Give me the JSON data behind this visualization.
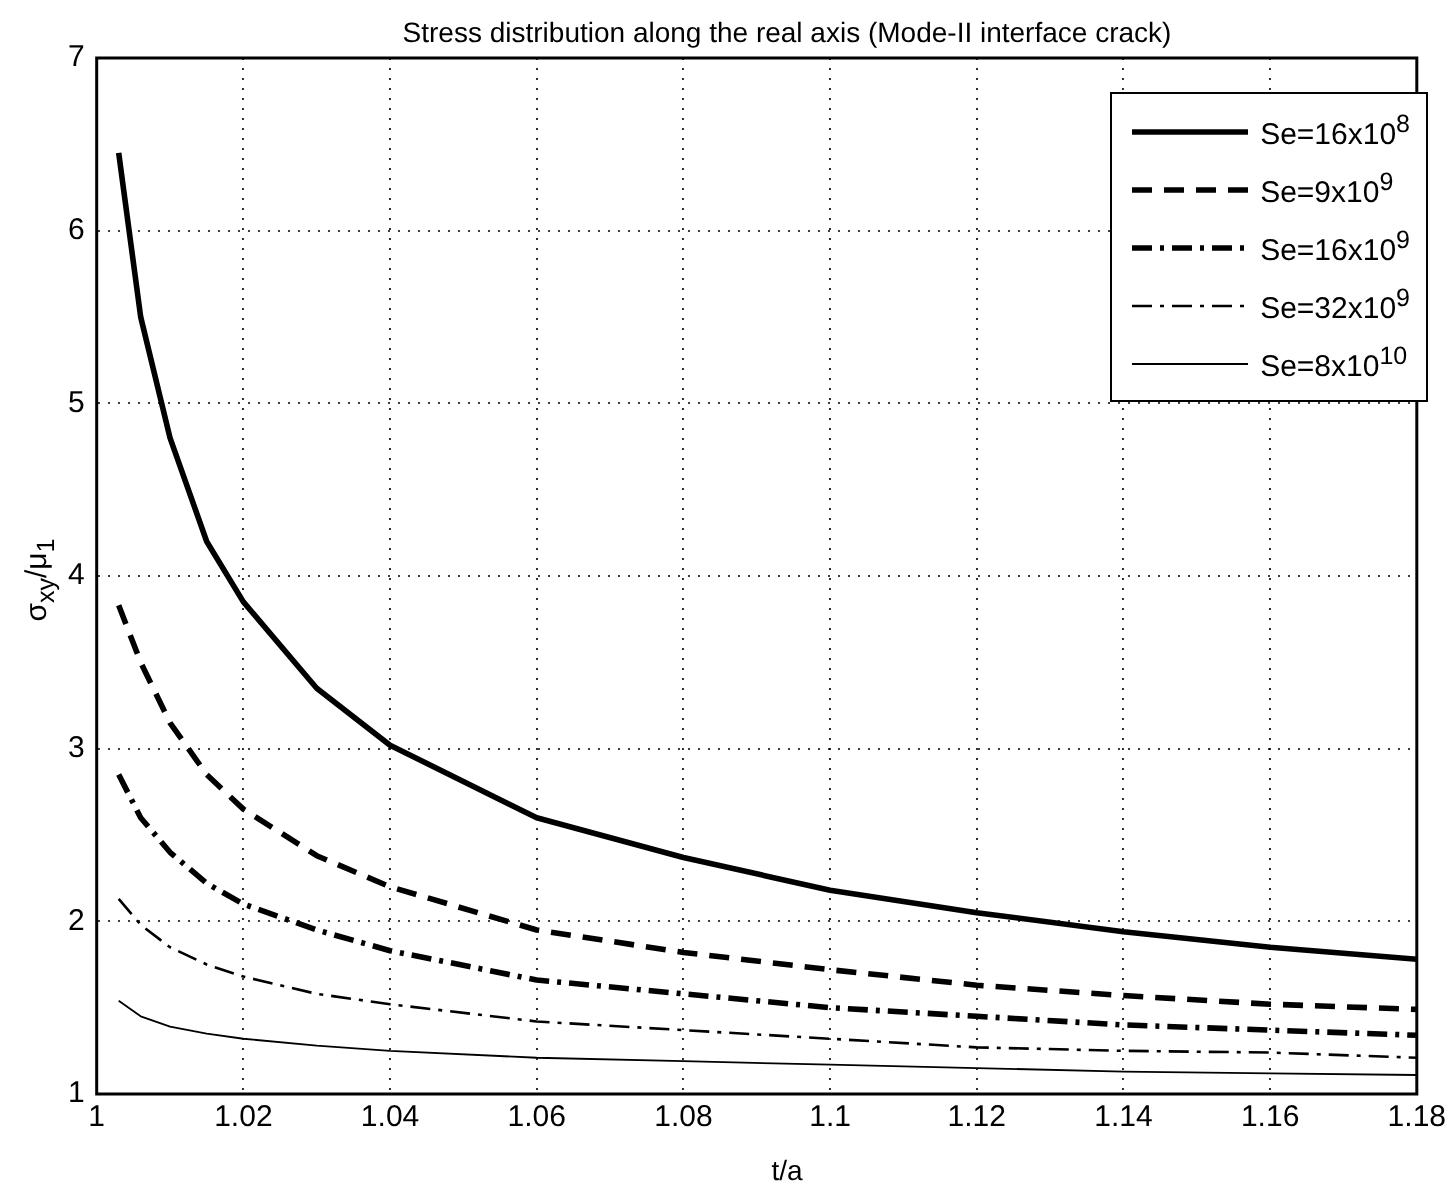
{
  "chart_data": {
    "type": "line",
    "title": "Stress distribution along the real axis (Mode-II interface crack)",
    "xlabel": "t/a",
    "ylabel": "σ$_{xy}$/μ$_{1}$",
    "x": [
      1.003,
      1.006,
      1.01,
      1.015,
      1.02,
      1.03,
      1.04,
      1.06,
      1.08,
      1.1,
      1.12,
      1.14,
      1.16,
      1.18
    ],
    "series": [
      {
        "name": "Se=16x10$^{8}$",
        "color": "#000000",
        "line_style": "solid",
        "values": [
          6.45,
          5.5,
          4.8,
          4.2,
          3.85,
          3.35,
          3.02,
          2.6,
          2.37,
          2.18,
          2.05,
          1.94,
          1.85,
          1.78
        ]
      },
      {
        "name": "Se=9x10$^{9}$",
        "color": "#000000",
        "line_style": "dashed",
        "values": [
          3.83,
          3.5,
          3.15,
          2.85,
          2.65,
          2.38,
          2.2,
          1.95,
          1.82,
          1.72,
          1.63,
          1.57,
          1.52,
          1.49
        ]
      },
      {
        "name": "Se=16x10$^{9}$",
        "color": "#000000",
        "line_style": "dashdot",
        "values": [
          2.85,
          2.6,
          2.4,
          2.22,
          2.1,
          1.95,
          1.83,
          1.66,
          1.58,
          1.5,
          1.45,
          1.4,
          1.37,
          1.34
        ]
      },
      {
        "name": "Se=32x10$^{9}$",
        "color": "#000000",
        "line_style": "dashdot",
        "values": [
          2.13,
          1.98,
          1.85,
          1.75,
          1.68,
          1.58,
          1.52,
          1.42,
          1.37,
          1.32,
          1.27,
          1.25,
          1.24,
          1.21
        ]
      },
      {
        "name": "Se=8x10$^{10}$",
        "color": "#000000",
        "line_style": "solid",
        "values": [
          1.54,
          1.45,
          1.39,
          1.35,
          1.32,
          1.28,
          1.25,
          1.21,
          1.19,
          1.17,
          1.15,
          1.13,
          1.12,
          1.11
        ]
      }
    ],
    "xlim": [
      1,
      1.18
    ],
    "xticks": [
      1,
      1.02,
      1.04,
      1.06,
      1.08,
      1.1,
      1.12,
      1.14,
      1.16,
      1.18
    ],
    "ylim": [
      1,
      7
    ],
    "yticks": [
      1,
      2,
      3,
      4,
      5,
      6,
      7
    ],
    "grid": true,
    "legend": "top right",
    "marker": "none"
  }
}
